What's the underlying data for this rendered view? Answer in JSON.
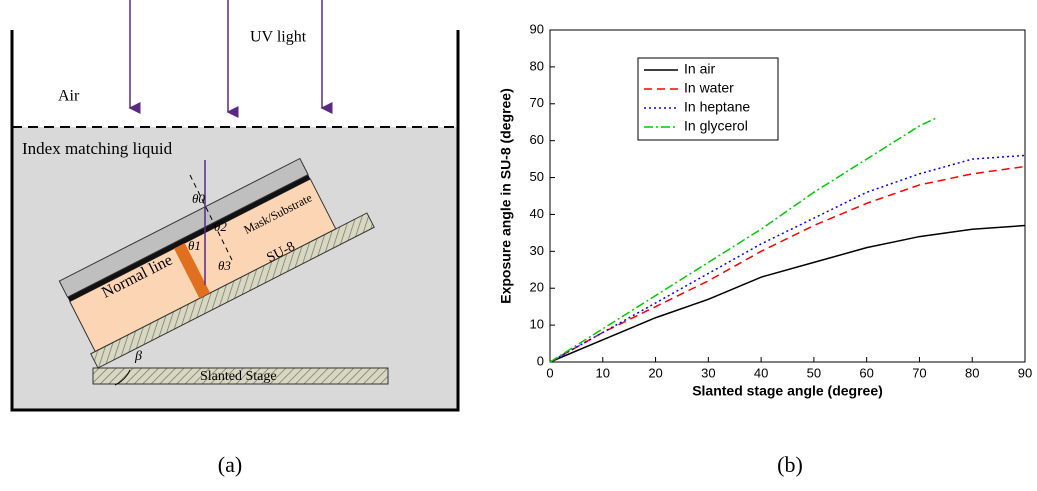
{
  "diagram": {
    "uv_light": "UV light",
    "air": "Air",
    "liquid": "Index matching liquid",
    "normal_line": "Normal line",
    "mask": "Mask/Substrate",
    "su8": "SU-8",
    "stage": "Slanted Stage",
    "theta0": "θ0",
    "theta1": "θ1",
    "theta2": "θ2",
    "theta3": "θ3",
    "beta": "β"
  },
  "captions": [
    "(a)",
    "(b)"
  ],
  "chart_data": {
    "type": "line",
    "xlabel": "Slanted stage angle (degree)",
    "ylabel": "Exposure angle in SU-8 (degree)",
    "xlim": [
      0,
      90
    ],
    "ylim": [
      0,
      90
    ],
    "xticks": [
      0,
      10,
      20,
      30,
      40,
      50,
      60,
      70,
      80,
      90
    ],
    "yticks": [
      0,
      10,
      20,
      30,
      40,
      50,
      60,
      70,
      80,
      90
    ],
    "legend": "upper left",
    "series": [
      {
        "name": "In air",
        "color": "#000000",
        "linestyle": "solid",
        "x": [
          0,
          10,
          20,
          30,
          40,
          50,
          60,
          70,
          80,
          90
        ],
        "values": [
          0,
          6,
          12,
          17,
          23,
          27,
          31,
          34,
          36,
          37
        ]
      },
      {
        "name": "In water",
        "color": "#ff0000",
        "linestyle": "dashed",
        "x": [
          0,
          10,
          20,
          30,
          40,
          50,
          60,
          70,
          80,
          90
        ],
        "values": [
          0,
          8,
          15,
          22,
          30,
          37,
          43,
          48,
          51,
          53
        ]
      },
      {
        "name": "In heptane",
        "color": "#0000ff",
        "linestyle": "dotted",
        "x": [
          0,
          10,
          20,
          30,
          40,
          50,
          60,
          70,
          80,
          90
        ],
        "values": [
          0,
          8,
          16,
          24,
          32,
          39,
          46,
          51,
          55,
          56
        ]
      },
      {
        "name": "In glycerol",
        "color": "#00cc00",
        "linestyle": "dashdot",
        "x": [
          0,
          10,
          20,
          30,
          40,
          50,
          60,
          70,
          73
        ],
        "values": [
          0,
          9,
          18,
          27,
          36,
          46,
          55,
          64,
          66
        ]
      }
    ]
  }
}
